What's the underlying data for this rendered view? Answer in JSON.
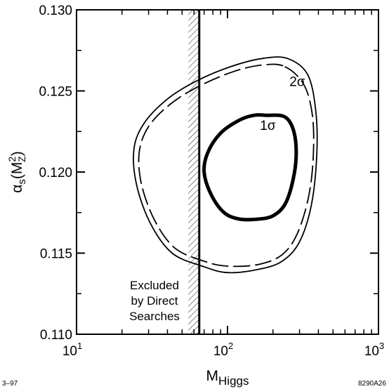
{
  "chart_data": {
    "type": "line",
    "x_scale": "log",
    "xlim": [
      10,
      1000
    ],
    "ylim": [
      0.11,
      0.13
    ],
    "x_ticks": [
      {
        "base": "10",
        "exp": "1",
        "value": 10
      },
      {
        "base": "10",
        "exp": "2",
        "value": 100
      },
      {
        "base": "10",
        "exp": "3",
        "value": 1000
      }
    ],
    "y_ticks": [
      {
        "label": "0.110",
        "value": 0.11
      },
      {
        "label": "0.115",
        "value": 0.115
      },
      {
        "label": "0.120",
        "value": 0.12
      },
      {
        "label": "0.125",
        "value": 0.125
      },
      {
        "label": "0.130",
        "value": 0.13
      }
    ],
    "xlabel": {
      "main": "M",
      "sub": "Higgs"
    },
    "ylabel": {
      "alpha": "α",
      "s": "s",
      "M": "M",
      "sup": "2",
      "sub": "Z"
    },
    "grid": false,
    "exclusion": {
      "label_lines": [
        "Excluded",
        "by Direct",
        "Searches"
      ],
      "x_start": 55,
      "x_limit": 65
    },
    "series": [
      {
        "name": "1σ",
        "style": "thick",
        "points": [
          [
            180,
            0.1235
          ],
          [
            240,
            0.1234
          ],
          [
            275,
            0.1225
          ],
          [
            285,
            0.121
          ],
          [
            270,
            0.1194
          ],
          [
            240,
            0.118
          ],
          [
            200,
            0.1173
          ],
          [
            160,
            0.1171
          ],
          [
            120,
            0.1171
          ],
          [
            95,
            0.1175
          ],
          [
            78,
            0.1186
          ],
          [
            70,
            0.12
          ],
          [
            74,
            0.1212
          ],
          [
            90,
            0.1224
          ],
          [
            120,
            0.1232
          ],
          [
            150,
            0.1235
          ]
        ]
      },
      {
        "name": "2σ",
        "style": "dashed",
        "points": [
          [
            240,
            0.1265
          ],
          [
            320,
            0.1254
          ],
          [
            365,
            0.1235
          ],
          [
            370,
            0.121
          ],
          [
            345,
            0.1185
          ],
          [
            290,
            0.1162
          ],
          [
            230,
            0.1149
          ],
          [
            160,
            0.1143
          ],
          [
            100,
            0.1142
          ],
          [
            70,
            0.1145
          ],
          [
            45,
            0.1153
          ],
          [
            33,
            0.117
          ],
          [
            27,
            0.1192
          ],
          [
            26,
            0.1212
          ],
          [
            30,
            0.1228
          ],
          [
            42,
            0.1242
          ],
          [
            65,
            0.1253
          ],
          [
            110,
            0.1262
          ],
          [
            170,
            0.1266
          ]
        ]
      },
      {
        "name": "",
        "style": "solid",
        "points": [
          [
            250,
            0.127
          ],
          [
            340,
            0.126
          ],
          [
            385,
            0.1237
          ],
          [
            390,
            0.121
          ],
          [
            360,
            0.118
          ],
          [
            300,
            0.1157
          ],
          [
            230,
            0.1145
          ],
          [
            160,
            0.114
          ],
          [
            100,
            0.1138
          ],
          [
            68,
            0.1142
          ],
          [
            43,
            0.115
          ],
          [
            31,
            0.1168
          ],
          [
            25,
            0.1192
          ],
          [
            24,
            0.1214
          ],
          [
            28,
            0.123
          ],
          [
            40,
            0.1245
          ],
          [
            62,
            0.1256
          ],
          [
            105,
            0.1265
          ],
          [
            170,
            0.127
          ]
        ]
      }
    ],
    "annotations": [
      {
        "text": "1σ",
        "x": 185,
        "y": 0.1226
      },
      {
        "text": "2σ",
        "x": 290,
        "y": 0.1253
      }
    ]
  },
  "corner_left": "3–97",
  "corner_right": "8290A26"
}
